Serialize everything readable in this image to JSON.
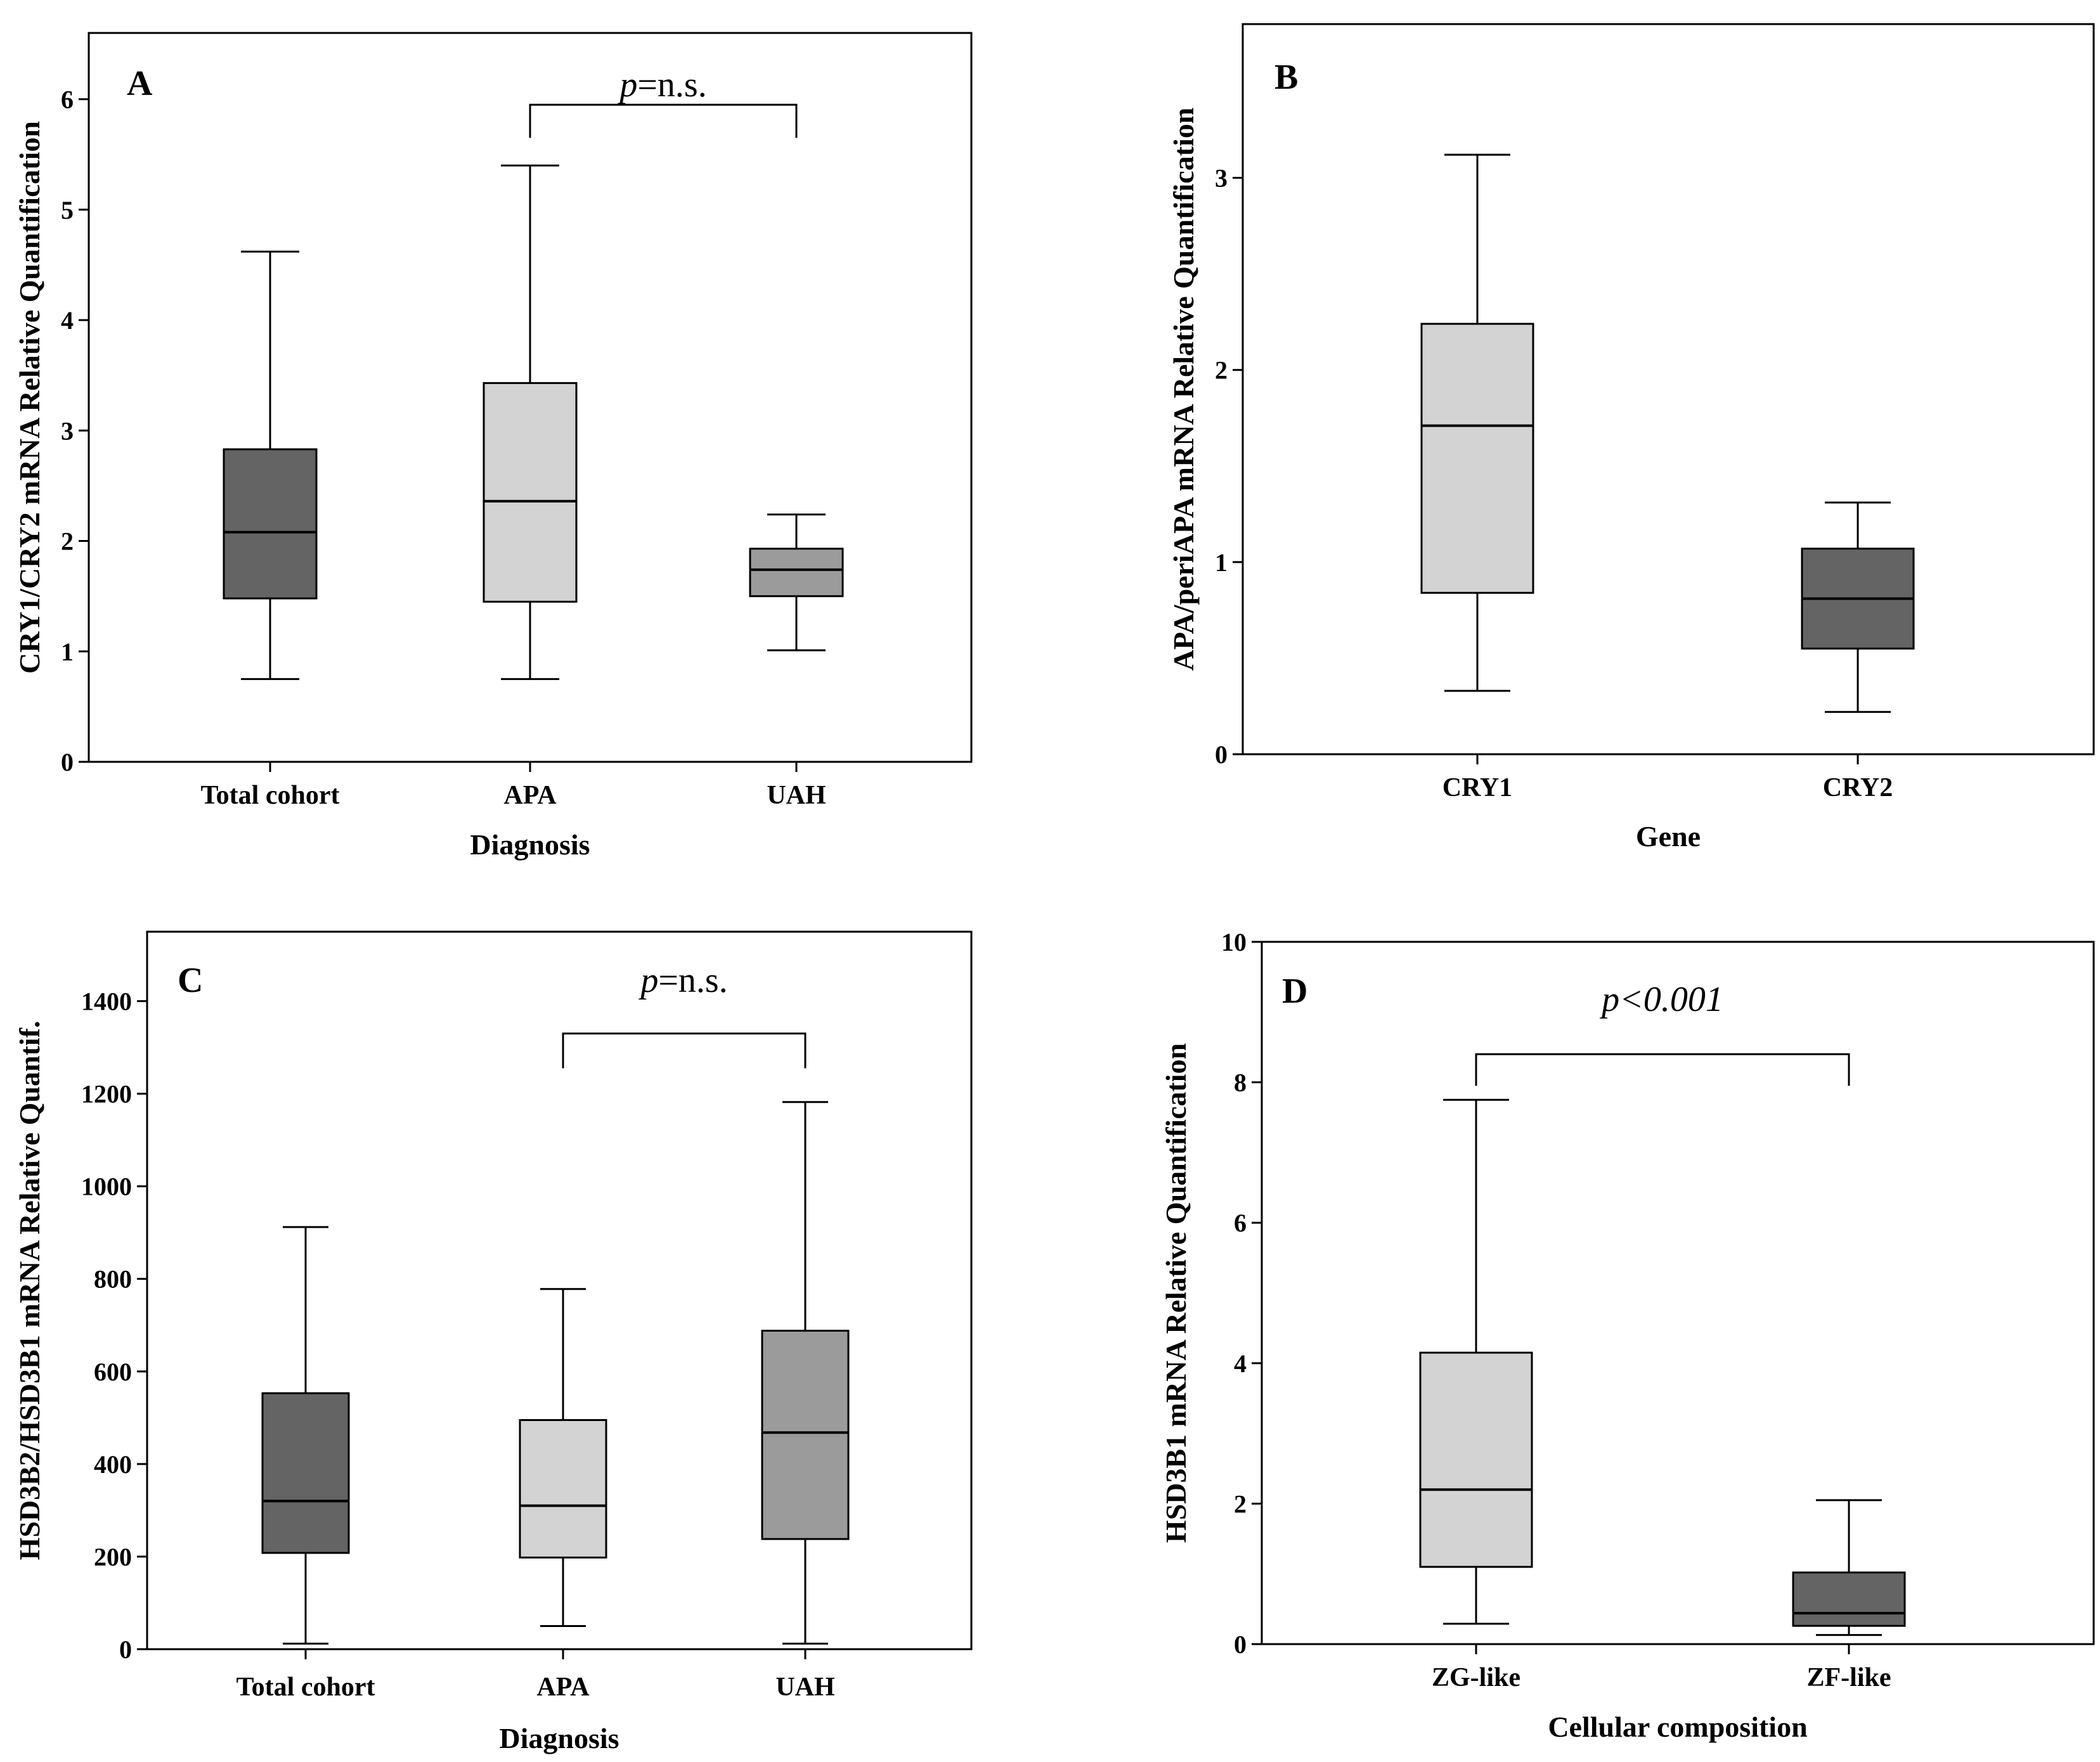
{
  "colors": {
    "dark": "#646464",
    "light": "#d3d3d3",
    "mid": "#9b9b9b",
    "frame": "#000000"
  },
  "chart_data": [
    {
      "panel": "A",
      "type": "box",
      "xlabel": "Diagnosis",
      "ylabel": "CRY1/CRY2 mRNA Relative Quantification",
      "ylim": [
        0,
        6.6
      ],
      "yticks": [
        0,
        1,
        2,
        3,
        4,
        5,
        6
      ],
      "categories": [
        "Total cohort",
        "APA",
        "UAH"
      ],
      "boxes": [
        {
          "category": "Total cohort",
          "min": 0.75,
          "q1": 1.48,
          "median": 2.08,
          "q3": 2.83,
          "max": 4.62,
          "color": "dark"
        },
        {
          "category": "APA",
          "min": 0.75,
          "q1": 1.45,
          "median": 2.36,
          "q3": 3.43,
          "max": 5.4,
          "color": "light"
        },
        {
          "category": "UAH",
          "min": 1.01,
          "q1": 1.5,
          "median": 1.74,
          "q3": 1.93,
          "max": 2.24,
          "color": "mid"
        }
      ],
      "significance": {
        "from": "APA",
        "to": "UAH",
        "italic": "p",
        "rest": "=n.s.",
        "level": 5.95,
        "drop": 5.65
      }
    },
    {
      "panel": "B",
      "type": "box",
      "xlabel": "Gene",
      "ylabel": "APA/periAPA mRNA Relative Quantification",
      "ylim": [
        0,
        3.8
      ],
      "yticks": [
        0,
        1,
        2,
        3
      ],
      "categories": [
        "CRY1",
        "CRY2"
      ],
      "boxes": [
        {
          "category": "CRY1",
          "min": 0.33,
          "q1": 0.84,
          "median": 1.71,
          "q3": 2.24,
          "max": 3.12,
          "color": "light"
        },
        {
          "category": "CRY2",
          "min": 0.22,
          "q1": 0.55,
          "median": 0.81,
          "q3": 1.07,
          "max": 1.31,
          "color": "dark"
        }
      ]
    },
    {
      "panel": "C",
      "type": "box",
      "xlabel": "Diagnosis",
      "ylabel": "HSD3B2/HSD3B1 mRNA Relative Quantif.",
      "ylim": [
        0,
        1550
      ],
      "yticks": [
        0,
        200,
        400,
        600,
        800,
        1000,
        1200,
        1400
      ],
      "categories": [
        "Total cohort",
        "APA",
        "UAH"
      ],
      "boxes": [
        {
          "category": "Total cohort",
          "min": 12,
          "q1": 208,
          "median": 320,
          "q3": 553,
          "max": 912,
          "color": "dark"
        },
        {
          "category": "APA",
          "min": 50,
          "q1": 198,
          "median": 310,
          "q3": 495,
          "max": 778,
          "color": "light"
        },
        {
          "category": "UAH",
          "min": 12,
          "q1": 238,
          "median": 468,
          "q3": 688,
          "max": 1182,
          "color": "mid"
        }
      ],
      "significance": {
        "from": "APA",
        "to": "UAH",
        "italic": "p",
        "rest": "=n.s.",
        "level": 1330,
        "drop": 1255
      }
    },
    {
      "panel": "D",
      "type": "box",
      "xlabel": "Cellular composition",
      "ylabel": "HSD3B1 mRNA Relative Quantification",
      "ylim": [
        0,
        10
      ],
      "yticks": [
        0,
        2,
        4,
        6,
        8,
        10
      ],
      "categories": [
        "ZG-like",
        "ZF-like"
      ],
      "boxes": [
        {
          "category": "ZG-like",
          "min": 0.29,
          "q1": 1.1,
          "median": 2.2,
          "q3": 4.15,
          "max": 7.75,
          "color": "light"
        },
        {
          "category": "ZF-like",
          "min": 0.13,
          "q1": 0.26,
          "median": 0.44,
          "q3": 1.02,
          "max": 2.05,
          "color": "dark"
        }
      ],
      "significance": {
        "from": "ZG-like",
        "to": "ZF-like",
        "italic": "p<0.001",
        "rest": "",
        "level": 8.4,
        "drop": 7.95
      }
    }
  ]
}
